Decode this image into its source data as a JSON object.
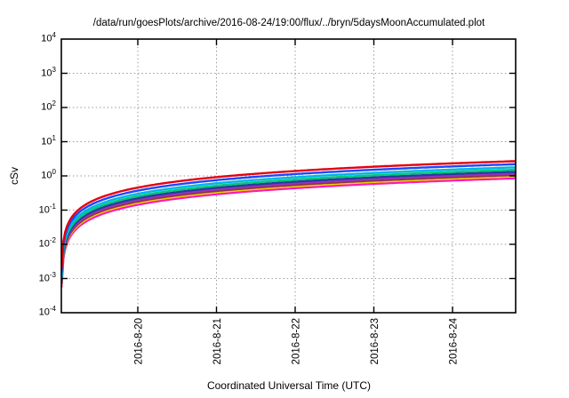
{
  "page": {
    "background": "#ffffff",
    "text_color": "#000000",
    "grid_color": "#9a9a9a"
  },
  "chart_data": {
    "type": "line",
    "title": "/data/run/goesPlots/archive/2016-08-24/19:00/flux/../bryn/5daysMoonAccumulated.plot",
    "xlabel": "Coordinated Universal Time (UTC)",
    "ylabel": "cSv",
    "x_tick_labels": [
      "2016-8-20",
      "2016-8-21",
      "2016-8-22",
      "2016-8-23",
      "2016-8-24"
    ],
    "y_scale": "log10",
    "ylim": [
      0.0001,
      10000
    ],
    "y_tick_exponents": [
      4,
      3,
      2,
      1,
      0,
      -1,
      -2,
      -3,
      -4
    ],
    "grid": true,
    "legend": "none",
    "curve_shape": "cumulative dose curves: rise steeply from ~0.002 cSv at the left edge, then approximately linear accumulation in time rendered on a log axis",
    "start_value_cSv": 0.002,
    "series": [
      {
        "name": "red",
        "color": "#e4000f",
        "final_cSv": 2.7,
        "values_at_ticks": [
          0.45,
          0.92,
          1.39,
          1.86,
          2.32
        ]
      },
      {
        "name": "blue",
        "color": "#1e46ff",
        "final_cSv": 2.2,
        "values_at_ticks": [
          0.37,
          0.75,
          1.13,
          1.51,
          1.89
        ]
      },
      {
        "name": "cyan",
        "color": "#00b4e6",
        "final_cSv": 1.78,
        "values_at_ticks": [
          0.3,
          0.61,
          0.92,
          1.22,
          1.53
        ]
      },
      {
        "name": "spring-green",
        "color": "#00c87d",
        "final_cSv": 1.52,
        "values_at_ticks": [
          0.26,
          0.52,
          0.78,
          1.05,
          1.31
        ]
      },
      {
        "name": "navy",
        "color": "#283c9b",
        "final_cSv": 1.32,
        "values_at_ticks": [
          0.22,
          0.45,
          0.68,
          0.91,
          1.14
        ]
      },
      {
        "name": "purple",
        "color": "#9632be",
        "final_cSv": 1.17,
        "values_at_ticks": [
          0.2,
          0.4,
          0.6,
          0.81,
          1.01
        ]
      },
      {
        "name": "maroon",
        "color": "#8c3246",
        "final_cSv": 1.06,
        "values_at_ticks": [
          0.18,
          0.36,
          0.55,
          0.73,
          0.91
        ]
      },
      {
        "name": "yellow",
        "color": "#e6d200",
        "final_cSv": 0.97,
        "values_at_ticks": [
          0.16,
          0.33,
          0.5,
          0.67,
          0.84
        ]
      },
      {
        "name": "magenta",
        "color": "#ff19b4",
        "final_cSv": 0.85,
        "values_at_ticks": [
          0.14,
          0.29,
          0.44,
          0.58,
          0.73
        ]
      }
    ]
  }
}
